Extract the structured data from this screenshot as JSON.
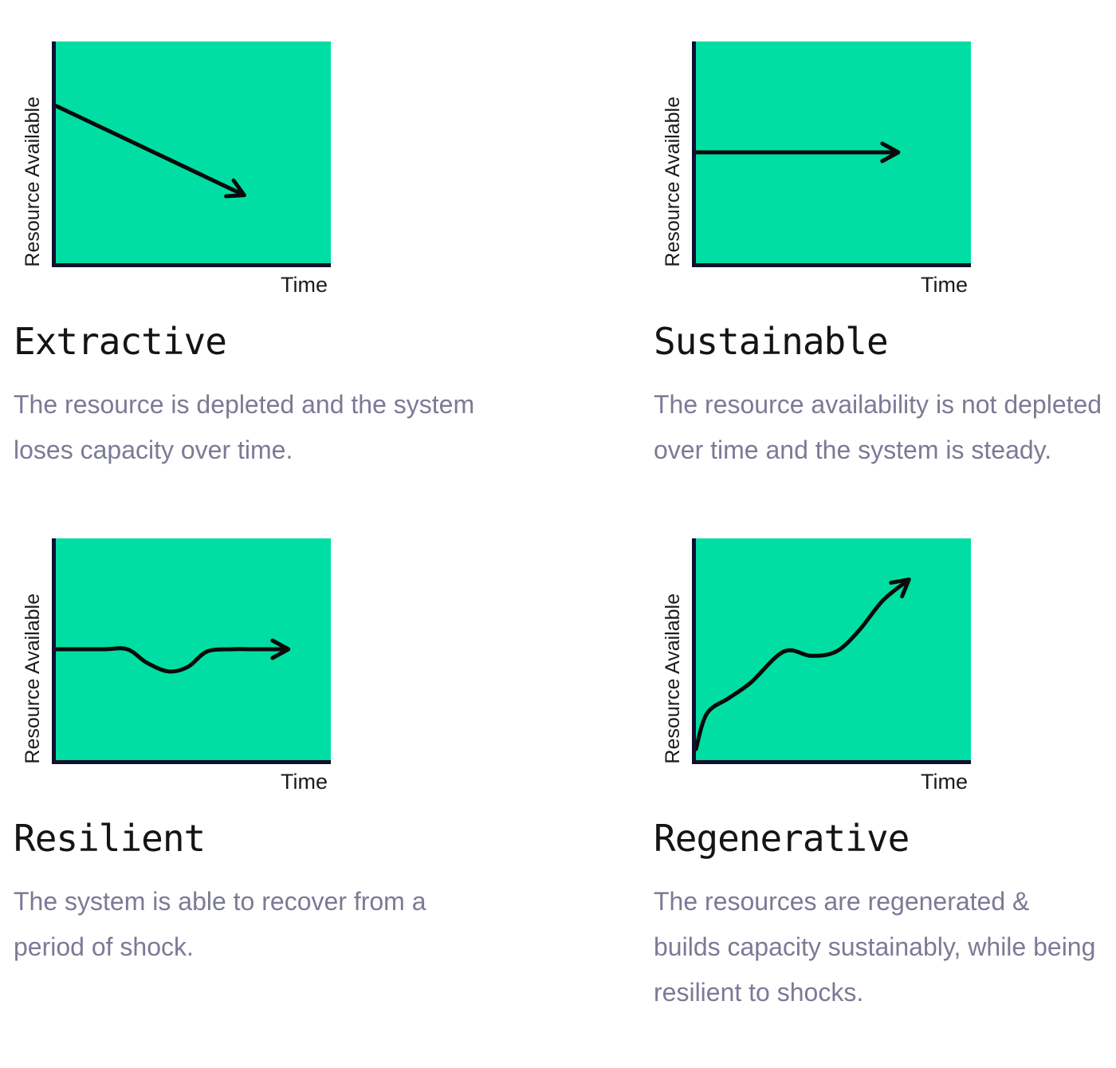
{
  "colors": {
    "background": "#ffffff",
    "plot_fill": "#00dea3",
    "axis": "#10102e",
    "line": "#0a0a0a",
    "title_text": "#141414",
    "description_text": "#7b7a96",
    "label_text": "#1b1b1b"
  },
  "chart_data": [
    {
      "id": "extractive",
      "type": "line",
      "title": "Extractive",
      "description": "The resource is depleted and the system loses capacity over time.",
      "xlabel": "Time",
      "ylabel": "Resource Available",
      "trend": "declining straight arrow",
      "axes": "qualitative, no ticks, arrow shows resource over time",
      "points_pct": [
        [
          0,
          71
        ],
        [
          68,
          31
        ]
      ]
    },
    {
      "id": "sustainable",
      "type": "line",
      "title": "Sustainable",
      "description": "The resource availability is not depleted over time and the system is steady.",
      "xlabel": "Time",
      "ylabel": "Resource Available",
      "trend": "flat steady arrow",
      "axes": "qualitative, no ticks, arrow shows resource over time",
      "points_pct": [
        [
          0,
          50
        ],
        [
          73,
          50
        ]
      ]
    },
    {
      "id": "resilient",
      "type": "line",
      "title": "Resilient",
      "description": "The system is able to recover from a period of shock.",
      "xlabel": "Time",
      "ylabel": "Resource Available",
      "trend": "flat with temporary dip and recovery",
      "axes": "qualitative, no ticks, arrow shows resource over time",
      "points_pct": [
        [
          0,
          50
        ],
        [
          17,
          50
        ],
        [
          26,
          50
        ],
        [
          33,
          44
        ],
        [
          41,
          40
        ],
        [
          48,
          42
        ],
        [
          55,
          49
        ],
        [
          64,
          50
        ],
        [
          72,
          50
        ],
        [
          84,
          50
        ]
      ]
    },
    {
      "id": "regenerative",
      "type": "line",
      "title": "Regenerative",
      "description": "The resources are regenerated & builds capacity sustainably, while being resilient to shocks.",
      "xlabel": "Time",
      "ylabel": "Resource Available",
      "trend": "rising in waves toward upper right",
      "axes": "qualitative, no ticks, arrow shows resource over time",
      "points_pct": [
        [
          0,
          5
        ],
        [
          4,
          21
        ],
        [
          12,
          28
        ],
        [
          20,
          35
        ],
        [
          32,
          49
        ],
        [
          42,
          47
        ],
        [
          51,
          49
        ],
        [
          59,
          58
        ],
        [
          68,
          72
        ],
        [
          77,
          81
        ]
      ]
    }
  ]
}
